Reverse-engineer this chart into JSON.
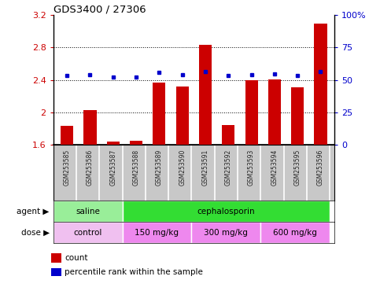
{
  "title": "GDS3400 / 27306",
  "samples": [
    "GSM253585",
    "GSM253586",
    "GSM253587",
    "GSM253588",
    "GSM253589",
    "GSM253590",
    "GSM253591",
    "GSM253592",
    "GSM253593",
    "GSM253594",
    "GSM253595",
    "GSM253596"
  ],
  "bar_values": [
    1.84,
    2.03,
    1.64,
    1.65,
    2.37,
    2.32,
    2.83,
    1.85,
    2.4,
    2.41,
    2.31,
    3.1
  ],
  "percentile_values": [
    2.46,
    2.47,
    2.44,
    2.44,
    2.49,
    2.47,
    2.5,
    2.46,
    2.47,
    2.48,
    2.46,
    2.5
  ],
  "bar_bottom": 1.6,
  "ylim_left": [
    1.6,
    3.2
  ],
  "ylim_right": [
    0,
    100
  ],
  "yticks_left": [
    1.6,
    2.0,
    2.4,
    2.8,
    3.2
  ],
  "yticks_right": [
    0,
    25,
    50,
    75,
    100
  ],
  "ytick_labels_left": [
    "1.6",
    "2",
    "2.4",
    "2.8",
    "3.2"
  ],
  "ytick_labels_right": [
    "0",
    "25",
    "50",
    "75",
    "100%"
  ],
  "bar_color": "#CC0000",
  "percentile_color": "#0000CC",
  "agent_groups": [
    {
      "label": "saline",
      "start": 0,
      "end": 3,
      "color": "#99EE99"
    },
    {
      "label": "cephalosporin",
      "start": 3,
      "end": 12,
      "color": "#33DD33"
    }
  ],
  "dose_groups": [
    {
      "label": "control",
      "start": 0,
      "end": 3,
      "color": "#F0C0F0"
    },
    {
      "label": "150 mg/kg",
      "start": 3,
      "end": 6,
      "color": "#EE88EE"
    },
    {
      "label": "300 mg/kg",
      "start": 6,
      "end": 9,
      "color": "#EE88EE"
    },
    {
      "label": "600 mg/kg",
      "start": 9,
      "end": 12,
      "color": "#EE88EE"
    }
  ],
  "legend_count_label": "count",
  "legend_percentile_label": "percentile rank within the sample",
  "agent_label": "agent",
  "dose_label": "dose",
  "bg_color": "#FFFFFF",
  "tick_label_color_left": "#CC0000",
  "tick_label_color_right": "#0000CC",
  "sample_bg_color": "#C8C8C8",
  "sample_divider_color": "#FFFFFF",
  "grid_lines": [
    2.0,
    2.4,
    2.8
  ]
}
